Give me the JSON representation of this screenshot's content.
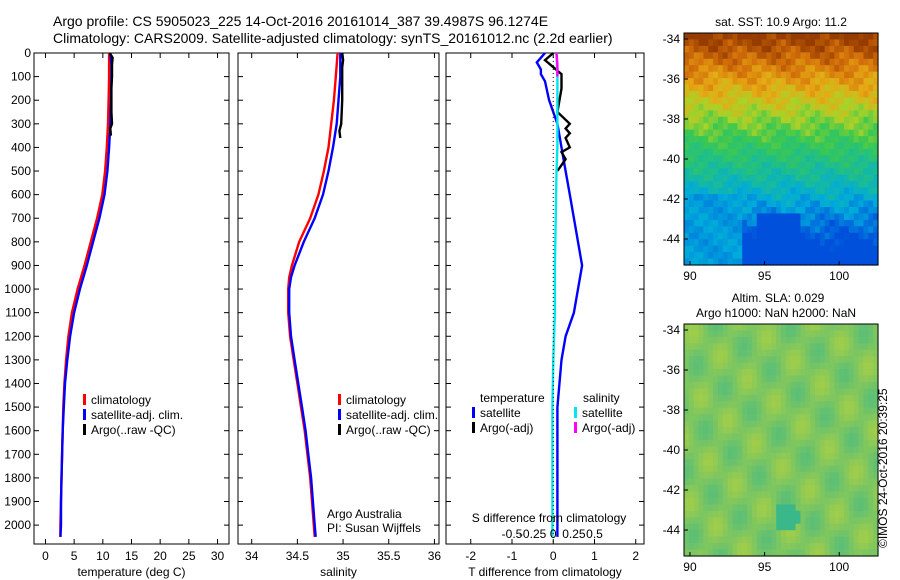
{
  "header": {
    "line1": "Argo profile: CS 5905023_225 14-Oct-2016 20161014_387 39.4987S 96.1274E",
    "line2": "Climatology: CARS2009. Satellite-adjusted climatology: synTS_20161012.nc (2.2d earlier)"
  },
  "colors": {
    "climatology": "#ff0000",
    "satellite": "#0000ff",
    "argo": "#000000",
    "sat_salinity": "#00e5ee",
    "argo_salinity": "#ff00ff"
  },
  "chart_data": [
    {
      "type": "line",
      "xlabel": "temperature (deg C)",
      "ylabel": "",
      "xlim": [
        -2,
        32
      ],
      "ylim": [
        2080,
        0
      ],
      "xticks": [
        "0",
        "5",
        "10",
        "15",
        "20",
        "25",
        "30"
      ],
      "xtick_values": [
        0,
        5,
        10,
        15,
        20,
        25,
        30
      ],
      "yticks": [
        "0",
        "100",
        "200",
        "300",
        "400",
        "500",
        "600",
        "700",
        "800",
        "900",
        "1000",
        "1100",
        "1200",
        "1300",
        "1400",
        "1500",
        "1600",
        "1700",
        "1800",
        "1900",
        "2000"
      ],
      "ytick_values": [
        0,
        100,
        200,
        300,
        400,
        500,
        600,
        700,
        800,
        900,
        1000,
        1100,
        1200,
        1300,
        1400,
        1500,
        1600,
        1700,
        1800,
        1900,
        2000
      ],
      "legend": [
        "climatology",
        "satellite-adj. clim.",
        "Argo(..raw -QC)"
      ],
      "series": [
        {
          "name": "climatology",
          "depth": [
            0,
            50,
            100,
            200,
            300,
            400,
            500,
            600,
            700,
            800,
            900,
            1000,
            1100,
            1200,
            1300,
            1400,
            1500,
            1600,
            1700,
            1800,
            1900,
            2000,
            2050
          ],
          "values": [
            11.1,
            11.1,
            11.1,
            11.0,
            10.9,
            10.7,
            10.4,
            9.9,
            9.0,
            7.9,
            6.8,
            5.6,
            4.6,
            4.0,
            3.6,
            3.3,
            3.1,
            3.0,
            2.9,
            2.8,
            2.7,
            2.6,
            2.6
          ]
        },
        {
          "name": "satellite-adj. clim.",
          "depth": [
            0,
            50,
            100,
            200,
            300,
            400,
            500,
            600,
            700,
            800,
            900,
            1000,
            1100,
            1200,
            1300,
            1400,
            1500,
            1600,
            1700,
            1800,
            1900,
            2000,
            2050
          ],
          "values": [
            11.3,
            11.5,
            11.5,
            11.4,
            11.3,
            11.1,
            10.8,
            10.3,
            9.4,
            8.3,
            7.2,
            6.0,
            5.0,
            4.3,
            3.8,
            3.4,
            3.2,
            3.0,
            2.9,
            2.8,
            2.7,
            2.7,
            2.6
          ]
        },
        {
          "name": "Argo(..raw -QC)",
          "depth": [
            0,
            20,
            50,
            100,
            150,
            200,
            250,
            300,
            320,
            350
          ],
          "values": [
            11.2,
            11.7,
            11.6,
            11.6,
            11.5,
            11.5,
            11.5,
            11.6,
            11.3,
            11.4
          ]
        }
      ]
    },
    {
      "type": "line",
      "xlabel": "salinity",
      "xlim": [
        33.85,
        36.05
      ],
      "ylim": [
        2080,
        0
      ],
      "xticks": [
        "34",
        "34.5",
        "35",
        "35.5",
        "36"
      ],
      "xtick_values": [
        34,
        34.5,
        35,
        35.5,
        36
      ],
      "legend": [
        "climatology",
        "satellite-adj. clim.",
        "Argo(..raw -QC)"
      ],
      "annotation": [
        "Argo Australia",
        "PI: Susan Wijffels"
      ],
      "series": [
        {
          "name": "climatology",
          "depth": [
            0,
            100,
            200,
            300,
            400,
            500,
            600,
            700,
            800,
            900,
            950,
            1000,
            1100,
            1200,
            1300,
            1400,
            1500,
            1600,
            1700,
            1800,
            1900,
            2000,
            2050
          ],
          "values": [
            34.94,
            34.92,
            34.9,
            34.87,
            34.84,
            34.79,
            34.73,
            34.64,
            34.52,
            34.44,
            34.41,
            34.4,
            34.4,
            34.42,
            34.46,
            34.5,
            34.54,
            34.58,
            34.61,
            34.64,
            34.66,
            34.68,
            34.69
          ]
        },
        {
          "name": "satellite-adj. clim.",
          "depth": [
            0,
            100,
            200,
            300,
            400,
            500,
            600,
            700,
            800,
            900,
            950,
            1000,
            1100,
            1200,
            1300,
            1400,
            1500,
            1600,
            1700,
            1800,
            1900,
            2000,
            2050
          ],
          "values": [
            34.97,
            34.97,
            34.95,
            34.93,
            34.89,
            34.84,
            34.78,
            34.69,
            34.57,
            34.47,
            34.43,
            34.41,
            34.41,
            34.43,
            34.47,
            34.51,
            34.55,
            34.59,
            34.62,
            34.65,
            34.67,
            34.69,
            34.7
          ]
        },
        {
          "name": "Argo(..raw -QC)",
          "depth": [
            0,
            30,
            60,
            100,
            200,
            300,
            330,
            360
          ],
          "values": [
            34.99,
            35.0,
            34.99,
            34.99,
            34.99,
            34.98,
            34.96,
            34.97
          ]
        }
      ]
    },
    {
      "type": "line",
      "xlabel": "T difference from climatology",
      "xlim": [
        -2.6,
        2.2
      ],
      "ylim": [
        2080,
        0
      ],
      "xticks": [
        "-2",
        "-1",
        "0",
        "1",
        "2"
      ],
      "xtick_values": [
        -2,
        -1,
        0,
        1,
        2
      ],
      "top_label": "S difference from climatology",
      "top_xticks": [
        "-0.5",
        "-0.25",
        "0",
        "0.25",
        "0.5"
      ],
      "top_xtick_values": [
        -0.5,
        -0.25,
        0,
        0.25,
        0.5
      ],
      "legend_headers": [
        "temperature",
        "salinity"
      ],
      "legend": [
        "satellite",
        "Argo(-adj)",
        "satellite",
        "Argo(-adj)"
      ],
      "series": [
        {
          "name": "satellite",
          "depth": [
            0,
            40,
            70,
            90,
            120,
            200,
            300,
            400,
            500,
            600,
            700,
            800,
            900,
            1000,
            1100,
            1200,
            1300,
            1500,
            1700,
            1900,
            2050
          ],
          "values": [
            -0.2,
            -0.4,
            -0.3,
            -0.3,
            -0.2,
            -0.1,
            0.1,
            0.2,
            0.3,
            0.4,
            0.5,
            0.6,
            0.7,
            0.6,
            0.5,
            0.3,
            0.2,
            0.1,
            0.1,
            0.1,
            0.1
          ]
        },
        {
          "name": "Argo(-adj)",
          "depth": [
            0,
            30,
            60,
            90,
            150,
            250,
            300,
            320,
            340,
            360,
            400,
            420,
            450,
            500
          ],
          "values": [
            0.0,
            -0.2,
            0.0,
            0.2,
            0.2,
            0.1,
            0.4,
            0.3,
            0.4,
            0.3,
            0.4,
            0.2,
            0.3,
            0.1
          ]
        },
        {
          "name": "satellite",
          "depth": [
            0,
            100,
            200,
            300,
            400,
            500,
            700,
            900,
            1100,
            1300,
            1500,
            1700,
            1900,
            2050
          ],
          "values": [
            0.04,
            0.05,
            0.05,
            0.05,
            0.05,
            0.04,
            0.03,
            0.02,
            0.02,
            0.0,
            -0.01,
            -0.01,
            -0.01,
            -0.01
          ]
        },
        {
          "name": "Argo(-adj)",
          "depth": [
            0,
            50,
            100
          ],
          "values": [
            0.04,
            0.05,
            0.05
          ]
        }
      ]
    },
    {
      "type": "heatmap",
      "title": "sat. SST: 10.9 Argo: 11.2",
      "xticks": [
        "90",
        "95",
        "100"
      ],
      "xtick_values": [
        90,
        95,
        100
      ],
      "yticks": [
        "-34",
        "-36",
        "-38",
        "-40",
        "-42",
        "-44"
      ],
      "ytick_values": [
        -34,
        -36,
        -38,
        -40,
        -42,
        -44
      ],
      "xlim": [
        89.6,
        102.6
      ],
      "ylim": [
        -45.3,
        -33.7
      ]
    },
    {
      "type": "heatmap",
      "title": "Altim. SLA: 0.029",
      "subtitle": "Argo h1000: NaN h2000: NaN",
      "xticks": [
        "90",
        "95",
        "100"
      ],
      "xtick_values": [
        90,
        95,
        100
      ],
      "yticks": [
        "-34",
        "-36",
        "-38",
        "-40",
        "-42",
        "-44"
      ],
      "ytick_values": [
        -34,
        -36,
        -38,
        -40,
        -42,
        -44
      ],
      "xlim": [
        89.6,
        102.6
      ],
      "ylim": [
        -45.3,
        -33.7
      ]
    }
  ],
  "footer": "©IMOS 24-Oct-2016 20:39:25"
}
